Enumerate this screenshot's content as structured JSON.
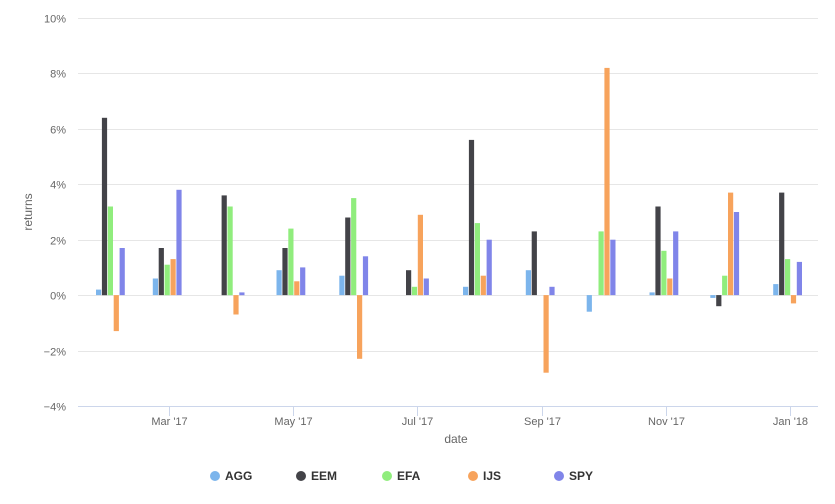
{
  "chart_data": {
    "type": "bar",
    "xlabel": "date",
    "ylabel": "returns",
    "ylim": [
      -4,
      10
    ],
    "y_ticks": [
      -4,
      -2,
      0,
      2,
      4,
      6,
      8,
      10
    ],
    "y_tick_labels": [
      "−4%",
      "−2%",
      "0%",
      "2%",
      "4%",
      "6%",
      "8%",
      "10%"
    ],
    "x_tick_labels": [
      "Mar '17",
      "May '17",
      "Jul '17",
      "Sep '17",
      "Nov '17",
      "Jan '18"
    ],
    "x_tick_dates": [
      "2017-03-01",
      "2017-05-01",
      "2017-07-01",
      "2017-09-01",
      "2017-11-01",
      "2018-01-01"
    ],
    "x_range": [
      "2017-01-15",
      "2018-01-15"
    ],
    "categories": [
      "2017-01-31",
      "2017-02-28",
      "2017-03-31",
      "2017-04-30",
      "2017-05-31",
      "2017-06-30",
      "2017-07-31",
      "2017-08-31",
      "2017-09-30",
      "2017-10-31",
      "2017-11-30",
      "2017-12-31"
    ],
    "grid": "horizontal",
    "legend_position": "bottom-center",
    "series": [
      {
        "name": "AGG",
        "color": "#7cb5ec",
        "values": [
          0.2,
          0.6,
          0.0,
          0.9,
          0.7,
          0.0,
          0.3,
          0.9,
          -0.6,
          0.1,
          -0.1,
          0.4
        ]
      },
      {
        "name": "EEM",
        "color": "#434348",
        "values": [
          6.4,
          1.7,
          3.6,
          1.7,
          2.8,
          0.9,
          5.6,
          2.3,
          0.0,
          3.2,
          -0.4,
          3.7
        ]
      },
      {
        "name": "EFA",
        "color": "#90ed7d",
        "values": [
          3.2,
          1.1,
          3.2,
          2.4,
          3.5,
          0.3,
          2.6,
          0.0,
          2.3,
          1.6,
          0.7,
          1.3
        ]
      },
      {
        "name": "IJS",
        "color": "#f7a35c",
        "values": [
          -1.3,
          1.3,
          -0.7,
          0.5,
          -2.3,
          2.9,
          0.7,
          -2.8,
          8.2,
          0.6,
          3.7,
          -0.3
        ]
      },
      {
        "name": "SPY",
        "color": "#8085e9",
        "values": [
          1.7,
          3.8,
          0.1,
          1.0,
          1.4,
          0.6,
          2.0,
          0.3,
          2.0,
          2.3,
          3.0,
          1.2
        ]
      }
    ]
  }
}
